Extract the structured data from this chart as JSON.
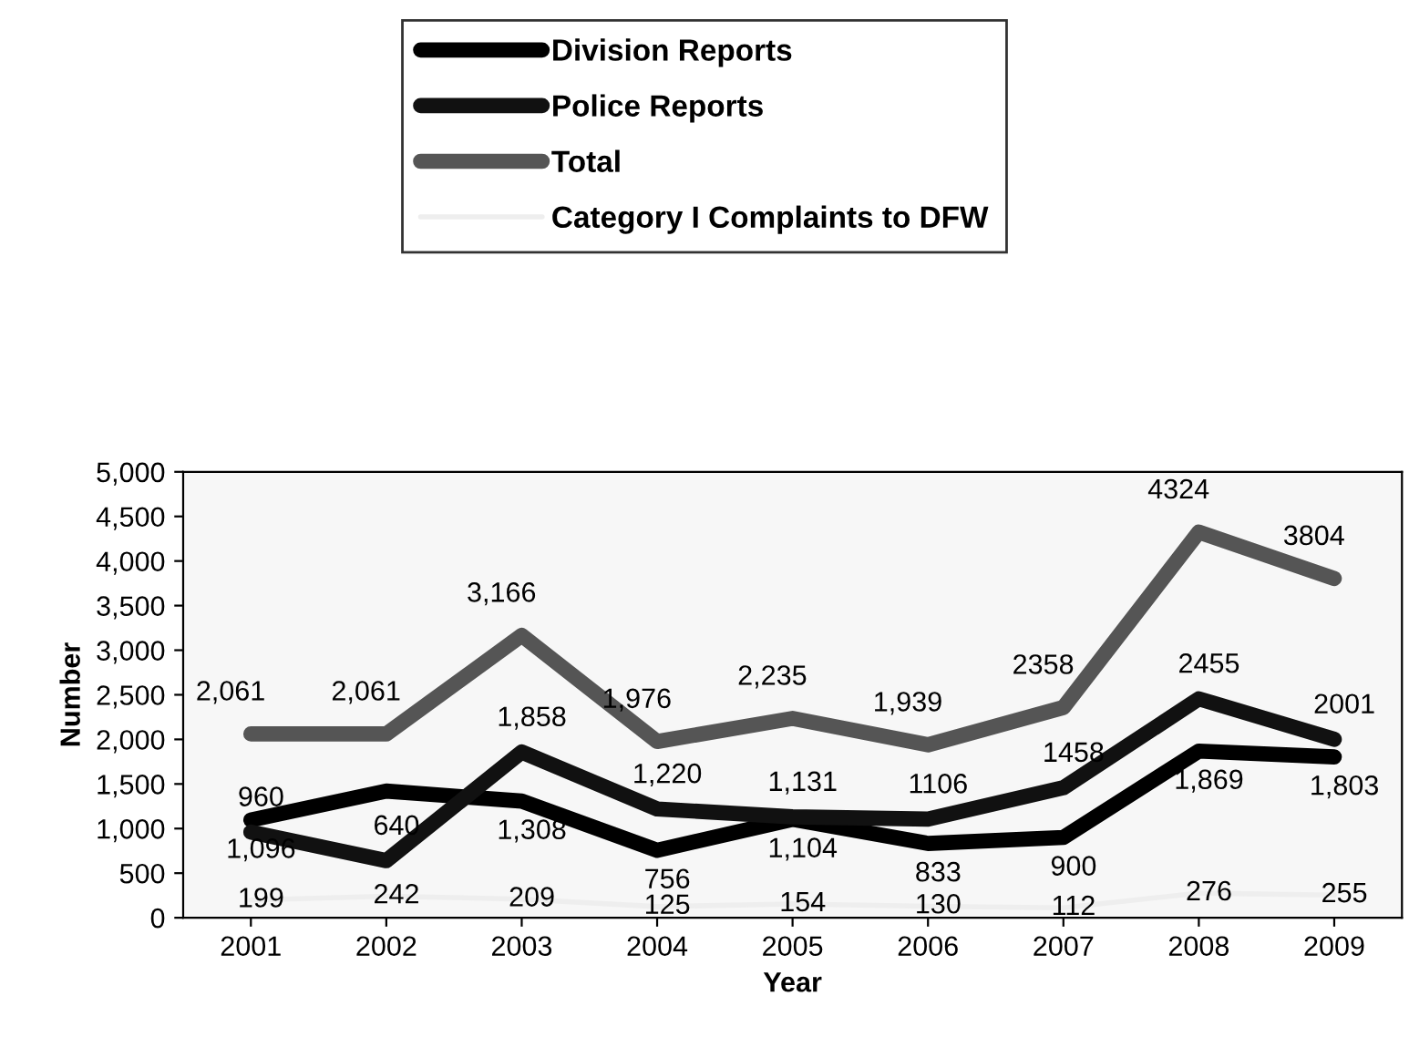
{
  "chart_data": {
    "type": "line",
    "xlabel": "Year",
    "ylabel": "Number",
    "categories": [
      "2001",
      "2002",
      "2003",
      "2004",
      "2005",
      "2006",
      "2007",
      "2008",
      "2009"
    ],
    "ylim": [
      0,
      5000
    ],
    "yticks": [
      {
        "value": 0,
        "label": "0"
      },
      {
        "value": 500,
        "label": "500"
      },
      {
        "value": 1000,
        "label": "1,000"
      },
      {
        "value": 1500,
        "label": "1,500"
      },
      {
        "value": 2000,
        "label": "2,000"
      },
      {
        "value": 2500,
        "label": "2,500"
      },
      {
        "value": 3000,
        "label": "3,000"
      },
      {
        "value": 3500,
        "label": "3,500"
      },
      {
        "value": 4000,
        "label": "4,000"
      },
      {
        "value": 4500,
        "label": "4,500"
      },
      {
        "value": 5000,
        "label": "5,000"
      }
    ],
    "grid": false,
    "legend": "top",
    "marker": "none",
    "line_style": "solid",
    "series": [
      {
        "name": "Division Reports",
        "color": "#000000",
        "values": [
          1096,
          1420,
          1308,
          756,
          1104,
          833,
          900,
          1869,
          1803
        ],
        "value_labels": [
          "1,096",
          null,
          "1,308",
          "756",
          "1,104",
          "833",
          "900",
          "1,869",
          "1,803"
        ]
      },
      {
        "name": "Police Reports",
        "color": "#111111",
        "values": [
          960,
          640,
          1858,
          1220,
          1131,
          1106,
          1458,
          2455,
          2001
        ],
        "value_labels": [
          "960",
          "640",
          "1,858",
          "1,220",
          "1,131",
          "1106",
          "1458",
          "2455",
          "2001"
        ]
      },
      {
        "name": "Total",
        "color": "#555555",
        "values": [
          2061,
          2061,
          3166,
          1976,
          2235,
          1939,
          2358,
          4324,
          3804
        ],
        "value_labels": [
          "2,061",
          "2,061",
          "3,166",
          "1,976",
          "2,235",
          "1,939",
          "2358",
          "4324",
          "3804"
        ]
      },
      {
        "name": "Category I Complaints to DFW",
        "color": "#eeeeee",
        "values": [
          199,
          242,
          209,
          125,
          154,
          130,
          112,
          276,
          255
        ],
        "value_labels": [
          "199",
          "242",
          "209",
          "125",
          "154",
          "130",
          "112",
          "276",
          "255"
        ]
      }
    ]
  }
}
